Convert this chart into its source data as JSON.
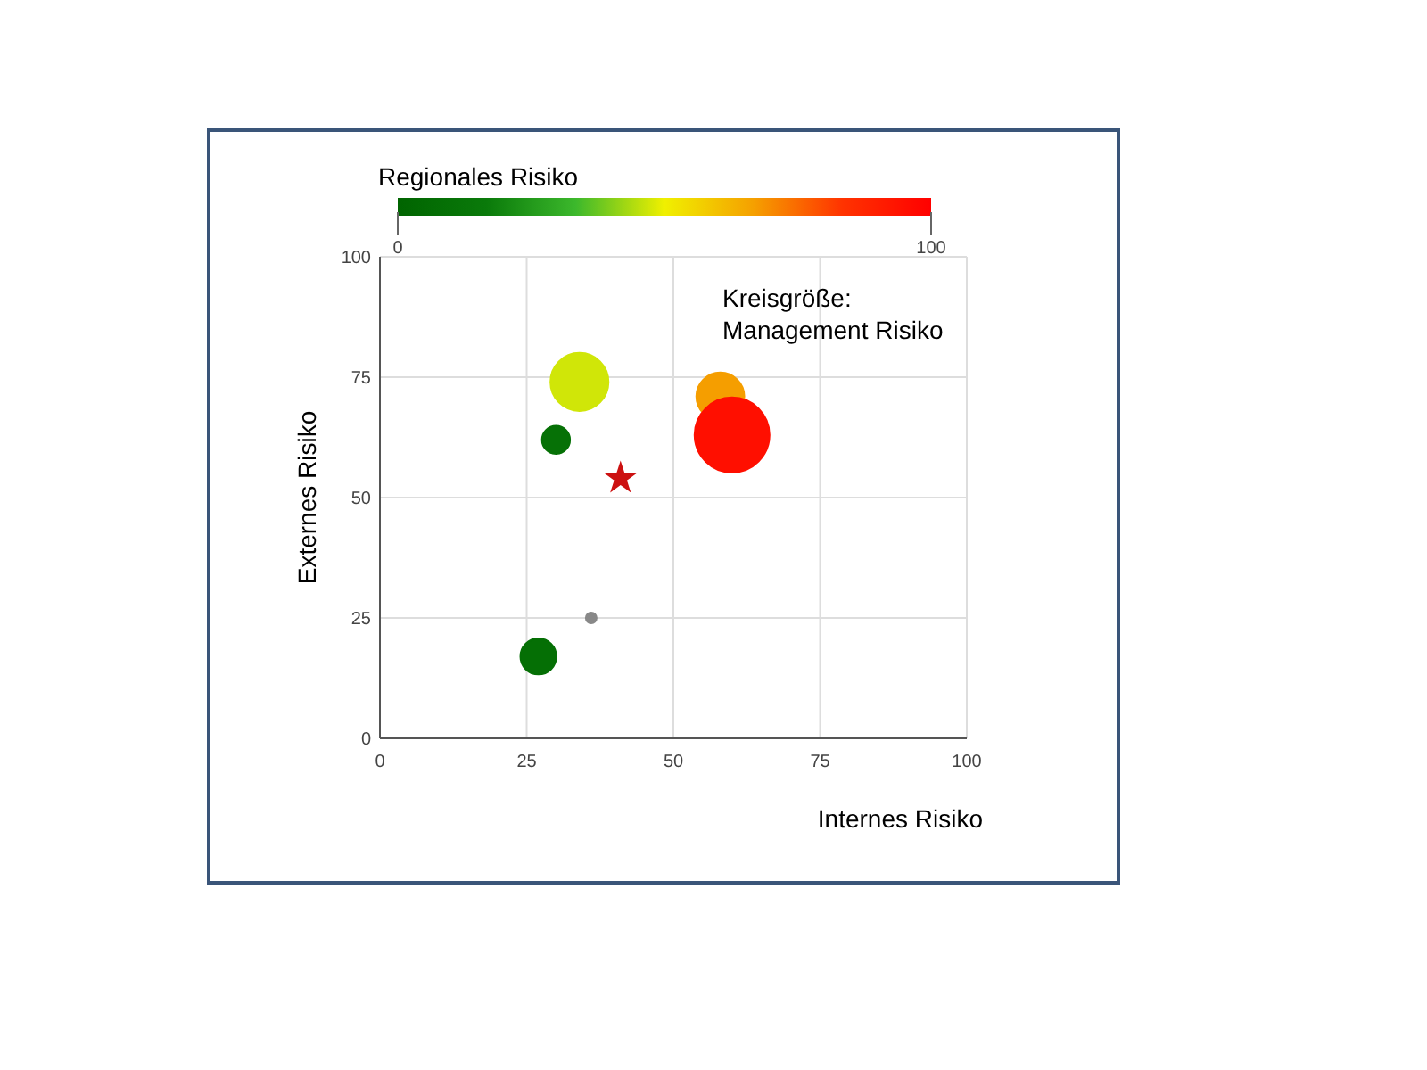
{
  "chart_data": {
    "type": "bubble",
    "xlabel": "Internes Risiko",
    "ylabel": "Externes Risiko",
    "clabel": "Regionales Risiko",
    "clim": [
      0,
      100
    ],
    "cticks": [
      0,
      100
    ],
    "xlim": [
      0,
      100
    ],
    "ylim": [
      0,
      100
    ],
    "xticks": [
      0,
      25,
      50,
      75,
      100
    ],
    "yticks": [
      0,
      25,
      50,
      75,
      100
    ],
    "grid": true,
    "annotations": [
      "Kreisgröße:\nManagement Risiko"
    ],
    "series": [
      {
        "type": "bubble",
        "x": [
          34,
          30,
          58,
          60,
          27
        ],
        "values": [
          74,
          62,
          71,
          63,
          17
        ],
        "sizes": [
          0.6,
          0.14,
          0.41,
          1,
          0.23
        ],
        "cvalues": [
          47,
          10,
          67,
          95,
          8
        ],
        "colors": [
          "#d0e608",
          "#067106",
          "#f59e00",
          "#ff0f00",
          "#056f05"
        ]
      },
      {
        "type": "scatter",
        "marker": "circle",
        "color": "#888888",
        "x": [
          36
        ],
        "values": [
          25
        ]
      },
      {
        "type": "scatter",
        "marker": "star",
        "color": "#cc1111",
        "x": [
          41
        ],
        "values": [
          54
        ]
      }
    ]
  }
}
